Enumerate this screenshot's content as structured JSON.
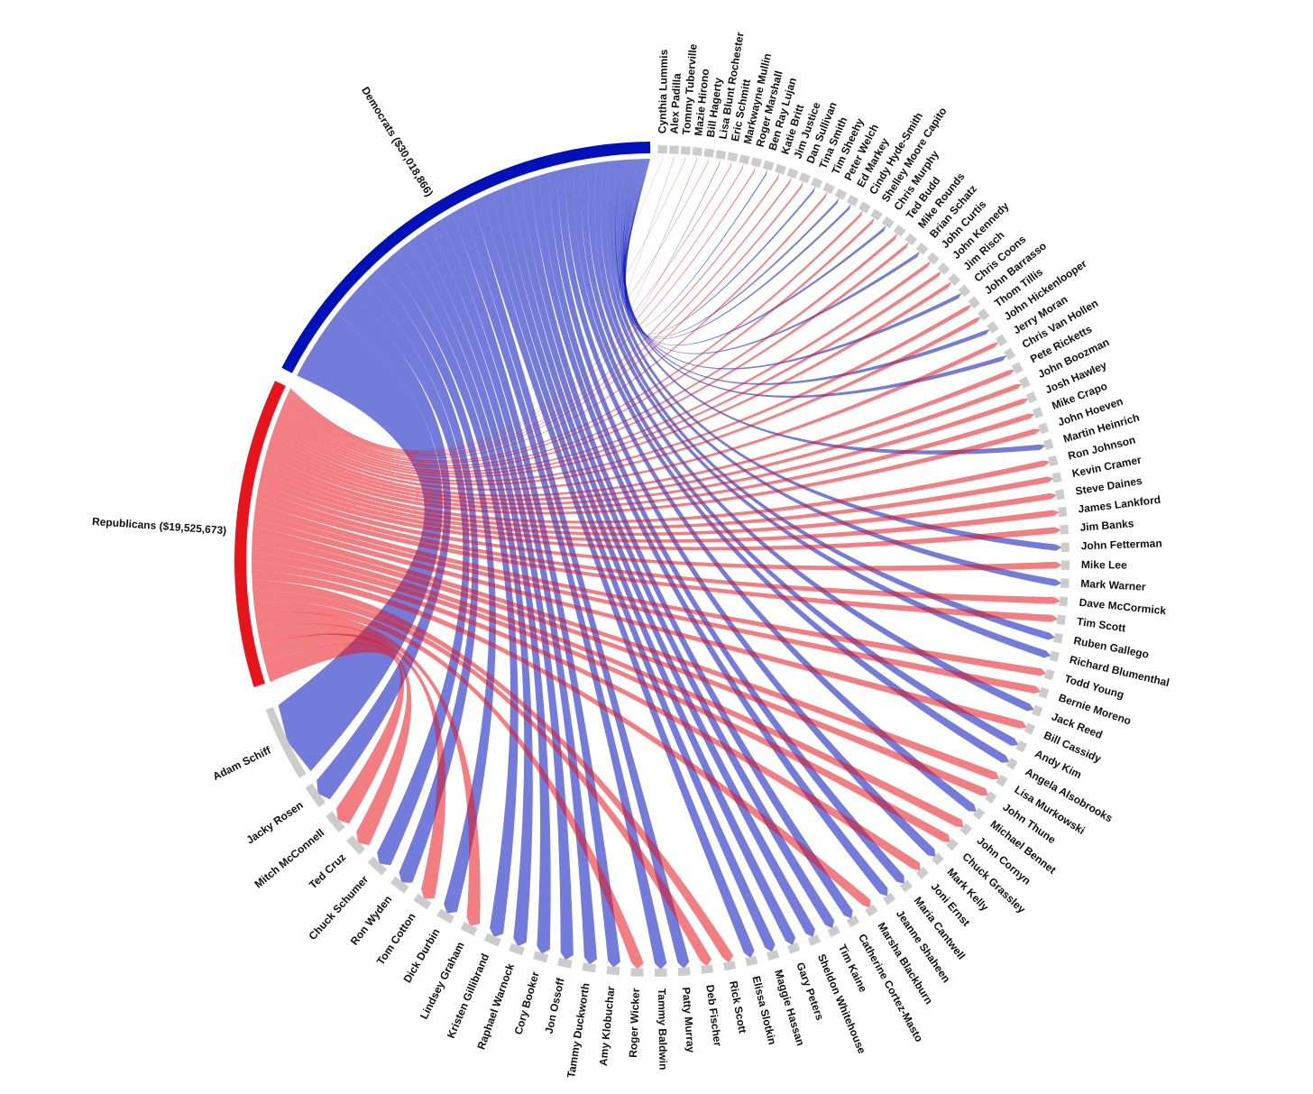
{
  "chart_data": {
    "type": "chord",
    "groups": [
      {
        "label": "Democrats ($30,018,866)",
        "color": "#0011bb"
      },
      {
        "label": "Republicans ($19,525,673)",
        "color": "#e8141c"
      }
    ],
    "node_color": "#cccccc",
    "nodes": [
      {
        "name": "Adam Schiff",
        "source": 0,
        "value": 4800000
      },
      {
        "name": "Jacky Rosen",
        "source": 0,
        "value": 1500000
      },
      {
        "name": "Mitch McConnell",
        "source": 1,
        "value": 1300000
      },
      {
        "name": "Ted Cruz",
        "source": 1,
        "value": 1200000
      },
      {
        "name": "Chuck Schumer",
        "source": 0,
        "value": 1200000
      },
      {
        "name": "Ron Wyden",
        "source": 0,
        "value": 1100000
      },
      {
        "name": "Tom Cotton",
        "source": 1,
        "value": 1050000
      },
      {
        "name": "Dick Durbin",
        "source": 0,
        "value": 1000000
      },
      {
        "name": "Lindsey Graham",
        "source": 1,
        "value": 950000
      },
      {
        "name": "Kristen Gillibrand",
        "source": 0,
        "value": 950000
      },
      {
        "name": "Raphael Warnock",
        "source": 0,
        "value": 900000
      },
      {
        "name": "Cory Booker",
        "source": 0,
        "value": 880000
      },
      {
        "name": "Jon Ossoff",
        "source": 0,
        "value": 860000
      },
      {
        "name": "Tammy Duckworth",
        "source": 0,
        "value": 840000
      },
      {
        "name": "Amy Klobuchar",
        "source": 0,
        "value": 820000
      },
      {
        "name": "Roger Wicker",
        "source": 1,
        "value": 800000
      },
      {
        "name": "Tammy Baldwin",
        "source": 0,
        "value": 780000
      },
      {
        "name": "Patty Murray",
        "source": 0,
        "value": 760000
      },
      {
        "name": "Deb Fischer",
        "source": 1,
        "value": 740000
      },
      {
        "name": "Rick Scott",
        "source": 1,
        "value": 720000
      },
      {
        "name": "Elissa Slotkin",
        "source": 0,
        "value": 700000
      },
      {
        "name": "Maggie Hassan",
        "source": 0,
        "value": 690000
      },
      {
        "name": "Gary Peters",
        "source": 0,
        "value": 680000
      },
      {
        "name": "Sheldon Whitehouse",
        "source": 0,
        "value": 670000
      },
      {
        "name": "Tim Kaine",
        "source": 0,
        "value": 660000
      },
      {
        "name": "Catherine Cortez-Masto",
        "source": 0,
        "value": 650000
      },
      {
        "name": "Marsha Blackburn",
        "source": 1,
        "value": 640000
      },
      {
        "name": "Jeanne Shaheen",
        "source": 0,
        "value": 630000
      },
      {
        "name": "Maria Cantwell",
        "source": 0,
        "value": 620000
      },
      {
        "name": "Joni Ernst",
        "source": 1,
        "value": 610000
      },
      {
        "name": "Mark Kelly",
        "source": 0,
        "value": 600000
      },
      {
        "name": "Chuck Grassley",
        "source": 1,
        "value": 590000
      },
      {
        "name": "John Cornyn",
        "source": 1,
        "value": 580000
      },
      {
        "name": "Michael Bennet",
        "source": 0,
        "value": 570000
      },
      {
        "name": "John Thune",
        "source": 1,
        "value": 560000
      },
      {
        "name": "Lisa Murkowski",
        "source": 1,
        "value": 550000
      },
      {
        "name": "Angela Alsobrooks",
        "source": 0,
        "value": 540000
      },
      {
        "name": "Andy Kim",
        "source": 0,
        "value": 530000
      },
      {
        "name": "Bill Cassidy",
        "source": 1,
        "value": 520000
      },
      {
        "name": "Jack Reed",
        "source": 0,
        "value": 510000
      },
      {
        "name": "Bernie Moreno",
        "source": 1,
        "value": 500000
      },
      {
        "name": "Todd Young",
        "source": 1,
        "value": 490000
      },
      {
        "name": "Richard Blumenthal",
        "source": 0,
        "value": 480000
      },
      {
        "name": "Ruben Gallego",
        "source": 0,
        "value": 470000
      },
      {
        "name": "Tim Scott",
        "source": 1,
        "value": 460000
      },
      {
        "name": "Dave McCormick",
        "source": 1,
        "value": 450000
      },
      {
        "name": "Mark Warner",
        "source": 0,
        "value": 440000
      },
      {
        "name": "Mike Lee",
        "source": 1,
        "value": 430000
      },
      {
        "name": "John Fetterman",
        "source": 0,
        "value": 420000
      },
      {
        "name": "Jim Banks",
        "source": 1,
        "value": 410000
      },
      {
        "name": "James Lankford",
        "source": 1,
        "value": 400000
      },
      {
        "name": "Steve Daines",
        "source": 1,
        "value": 390000
      },
      {
        "name": "Kevin Cramer",
        "source": 1,
        "value": 380000
      },
      {
        "name": "Ron Johnson",
        "source": 1,
        "value": 370000
      },
      {
        "name": "Martin Heinrich",
        "source": 0,
        "value": 360000
      },
      {
        "name": "John Hoeven",
        "source": 1,
        "value": 350000
      },
      {
        "name": "Mike Crapo",
        "source": 1,
        "value": 340000
      },
      {
        "name": "Josh Hawley",
        "source": 1,
        "value": 330000
      },
      {
        "name": "John Boozman",
        "source": 1,
        "value": 320000
      },
      {
        "name": "Pete Ricketts",
        "source": 1,
        "value": 310000
      },
      {
        "name": "Chris Van Hollen",
        "source": 0,
        "value": 300000
      },
      {
        "name": "Jerry Moran",
        "source": 1,
        "value": 290000
      },
      {
        "name": "John Hickenlooper",
        "source": 0,
        "value": 280000
      },
      {
        "name": "Thom Tillis",
        "source": 1,
        "value": 270000
      },
      {
        "name": "John Barrasso",
        "source": 1,
        "value": 260000
      },
      {
        "name": "Chris Coons",
        "source": 0,
        "value": 250000
      },
      {
        "name": "Jim Risch",
        "source": 1,
        "value": 240000
      },
      {
        "name": "John Kennedy",
        "source": 1,
        "value": 230000
      },
      {
        "name": "John Curtis",
        "source": 1,
        "value": 220000
      },
      {
        "name": "Brian Schatz",
        "source": 0,
        "value": 210000
      },
      {
        "name": "Mike Rounds",
        "source": 1,
        "value": 200000
      },
      {
        "name": "Ted Budd",
        "source": 1,
        "value": 190000
      },
      {
        "name": "Chris Murphy",
        "source": 0,
        "value": 180000
      },
      {
        "name": "Shelley Moore Capito",
        "source": 1,
        "value": 170000
      },
      {
        "name": "Cindy Hyde-Smith",
        "source": 1,
        "value": 160000
      },
      {
        "name": "Ed Markey",
        "source": 0,
        "value": 150000
      },
      {
        "name": "Peter Welch",
        "source": 0,
        "value": 140000
      },
      {
        "name": "Tim Sheehy",
        "source": 1,
        "value": 130000
      },
      {
        "name": "Tina Smith",
        "source": 0,
        "value": 120000
      },
      {
        "name": "Dan Sullivan",
        "source": 1,
        "value": 110000
      },
      {
        "name": "Jim Justice",
        "source": 1,
        "value": 100000
      },
      {
        "name": "Katie Britt",
        "source": 1,
        "value": 90000
      },
      {
        "name": "Ben Ray Lujan",
        "source": 0,
        "value": 80000
      },
      {
        "name": "Roger Marshall",
        "source": 1,
        "value": 70000
      },
      {
        "name": "Markwayne Mullin",
        "source": 1,
        "value": 60000
      },
      {
        "name": "Eric Schmitt",
        "source": 1,
        "value": 50000
      },
      {
        "name": "Lisa Blunt Rochester",
        "source": 0,
        "value": 40000
      },
      {
        "name": "Bill Hagerty",
        "source": 1,
        "value": 35000
      },
      {
        "name": "Mazie Hirono",
        "source": 0,
        "value": 30000
      },
      {
        "name": "Tommy Tuberville",
        "source": 1,
        "value": 25000
      },
      {
        "name": "Alex Padilla",
        "source": 0,
        "value": 20000
      },
      {
        "name": "Cynthia Lummis",
        "source": 1,
        "value": 15000
      }
    ]
  }
}
